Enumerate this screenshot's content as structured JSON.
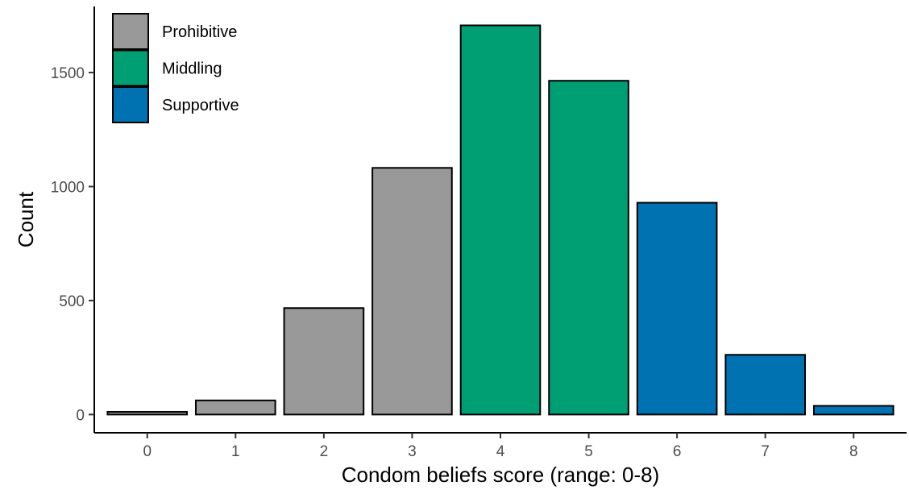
{
  "chart_data": {
    "type": "bar",
    "title": "",
    "xlabel": "Condom beliefs score (range: 0-8)",
    "ylabel": "Count",
    "categories": [
      "0",
      "1",
      "2",
      "3",
      "4",
      "5",
      "6",
      "7",
      "8"
    ],
    "values": [
      12,
      62,
      467,
      1082,
      1707,
      1464,
      929,
      262,
      38
    ],
    "groups": [
      "Prohibitive",
      "Prohibitive",
      "Prohibitive",
      "Prohibitive",
      "Middling",
      "Middling",
      "Supportive",
      "Supportive",
      "Supportive"
    ],
    "yticks": [
      0,
      500,
      1000,
      1500
    ],
    "ylim": [
      -80,
      1790
    ],
    "grid": false,
    "legend": {
      "placement": "top-left",
      "entries": [
        {
          "name": "Prohibitive",
          "color": "#999999"
        },
        {
          "name": "Middling",
          "color": "#009E73"
        },
        {
          "name": "Supportive",
          "color": "#0072B2"
        }
      ]
    }
  }
}
